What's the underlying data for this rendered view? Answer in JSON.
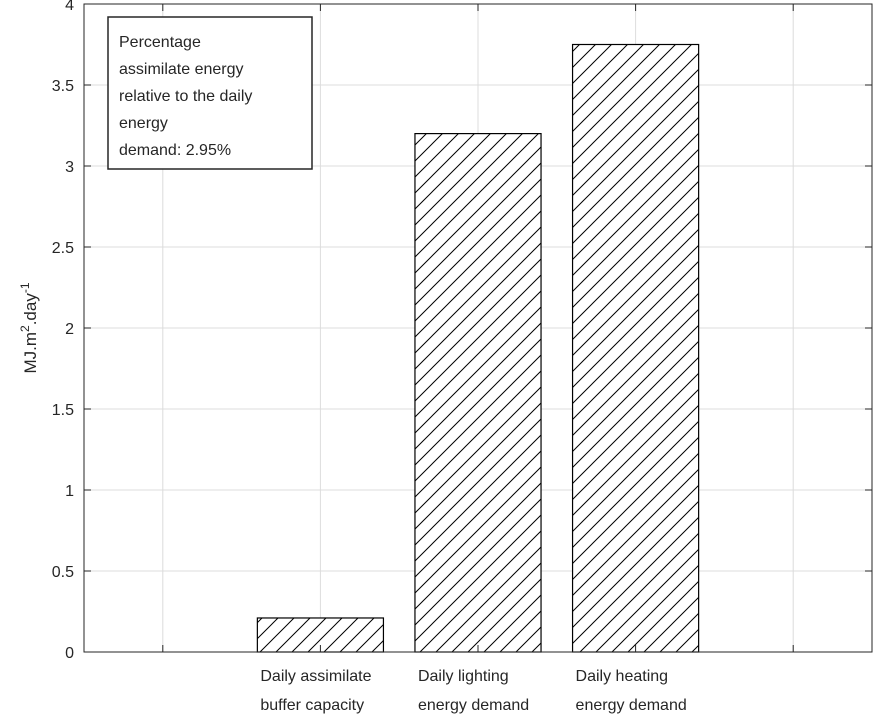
{
  "chart_data": {
    "type": "bar",
    "categories": [
      [
        "Daily assimilate",
        "buffer capacity"
      ],
      [
        "Daily lighting",
        "energy demand"
      ],
      [
        "Daily heating",
        "energy demand"
      ]
    ],
    "values": [
      0.21,
      3.2,
      3.75
    ],
    "ylabel": {
      "parts": [
        "MJ.m",
        "2",
        ".day",
        "-1"
      ]
    },
    "ylim": [
      0,
      4
    ],
    "yticks": [
      "0",
      "0.5",
      "1",
      "1.5",
      "2",
      "2.5",
      "3",
      "3.5",
      "4"
    ],
    "grid": true,
    "bar_style": "diagonal-hatch",
    "annotation": {
      "lines": [
        "Percentage",
        "assimilate energy",
        "relative to the daily",
        "energy",
        "demand: 2.95%"
      ]
    }
  },
  "colors": {
    "bar_stroke": "#000000",
    "hatch": "#000000",
    "grid": "#dcdcdc",
    "axis": "#262626",
    "text": "#262626"
  }
}
